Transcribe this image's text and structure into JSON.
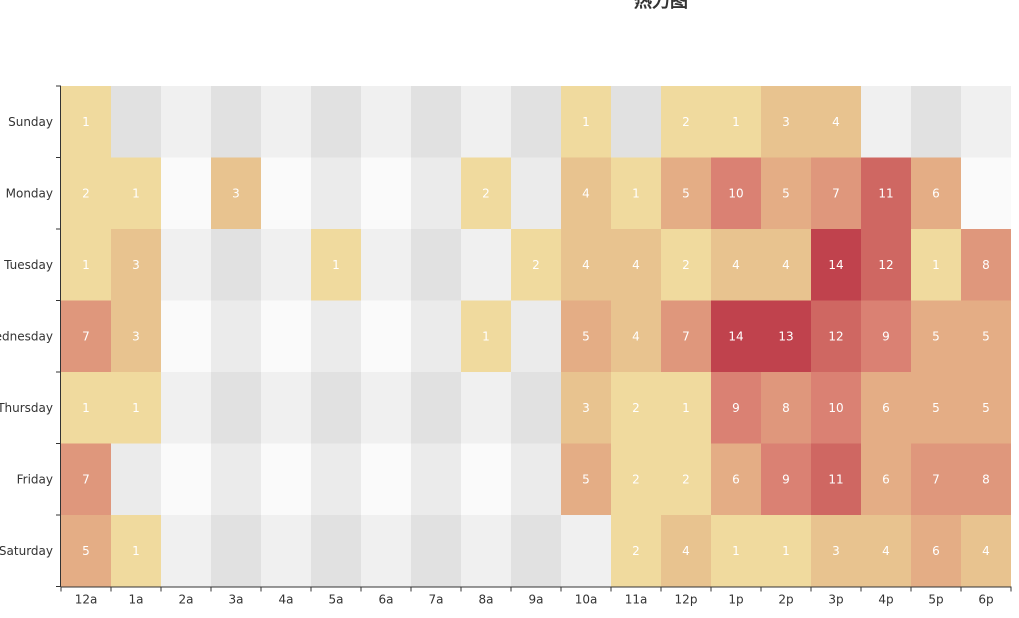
{
  "chart_data": {
    "type": "heatmap",
    "title": "热力图",
    "x_categories": [
      "12a",
      "1a",
      "2a",
      "3a",
      "4a",
      "5a",
      "6a",
      "7a",
      "8a",
      "9a",
      "10a",
      "11a",
      "12p",
      "1p",
      "2p",
      "3p",
      "4p",
      "5p",
      "6p"
    ],
    "y_categories": [
      "Sunday",
      "Monday",
      "Tuesday",
      "Wednesday",
      "Thursday",
      "Friday",
      "Saturday"
    ],
    "values": [
      [
        1,
        null,
        null,
        null,
        null,
        null,
        null,
        null,
        null,
        null,
        1,
        null,
        2,
        1,
        3,
        4,
        null,
        null,
        null
      ],
      [
        2,
        1,
        null,
        3,
        null,
        null,
        null,
        null,
        2,
        null,
        4,
        1,
        5,
        10,
        5,
        7,
        11,
        6,
        null
      ],
      [
        1,
        3,
        null,
        null,
        null,
        1,
        null,
        null,
        null,
        2,
        4,
        4,
        2,
        4,
        4,
        14,
        12,
        1,
        8
      ],
      [
        7,
        3,
        null,
        null,
        null,
        null,
        null,
        null,
        1,
        null,
        5,
        4,
        7,
        14,
        13,
        12,
        9,
        5,
        5
      ],
      [
        1,
        1,
        null,
        null,
        null,
        null,
        null,
        null,
        null,
        null,
        3,
        2,
        1,
        9,
        8,
        10,
        6,
        5,
        5
      ],
      [
        7,
        null,
        null,
        null,
        null,
        null,
        null,
        null,
        null,
        null,
        5,
        2,
        2,
        6,
        9,
        11,
        6,
        7,
        8
      ],
      [
        5,
        1,
        null,
        null,
        null,
        null,
        null,
        null,
        null,
        null,
        null,
        2,
        4,
        1,
        1,
        3,
        4,
        6,
        4
      ]
    ],
    "value_range": [
      1,
      14
    ],
    "color_scale": [
      "#f0da9e",
      "#e8c38f",
      "#e4ad85",
      "#df977c",
      "#da8173",
      "#cf6762",
      "#c0424d"
    ],
    "empty_cell_colors": [
      "#f0f0f0",
      "#e1e1e1",
      "#fafafa",
      "#ebebeb"
    ],
    "grid": false,
    "legend": "none"
  }
}
